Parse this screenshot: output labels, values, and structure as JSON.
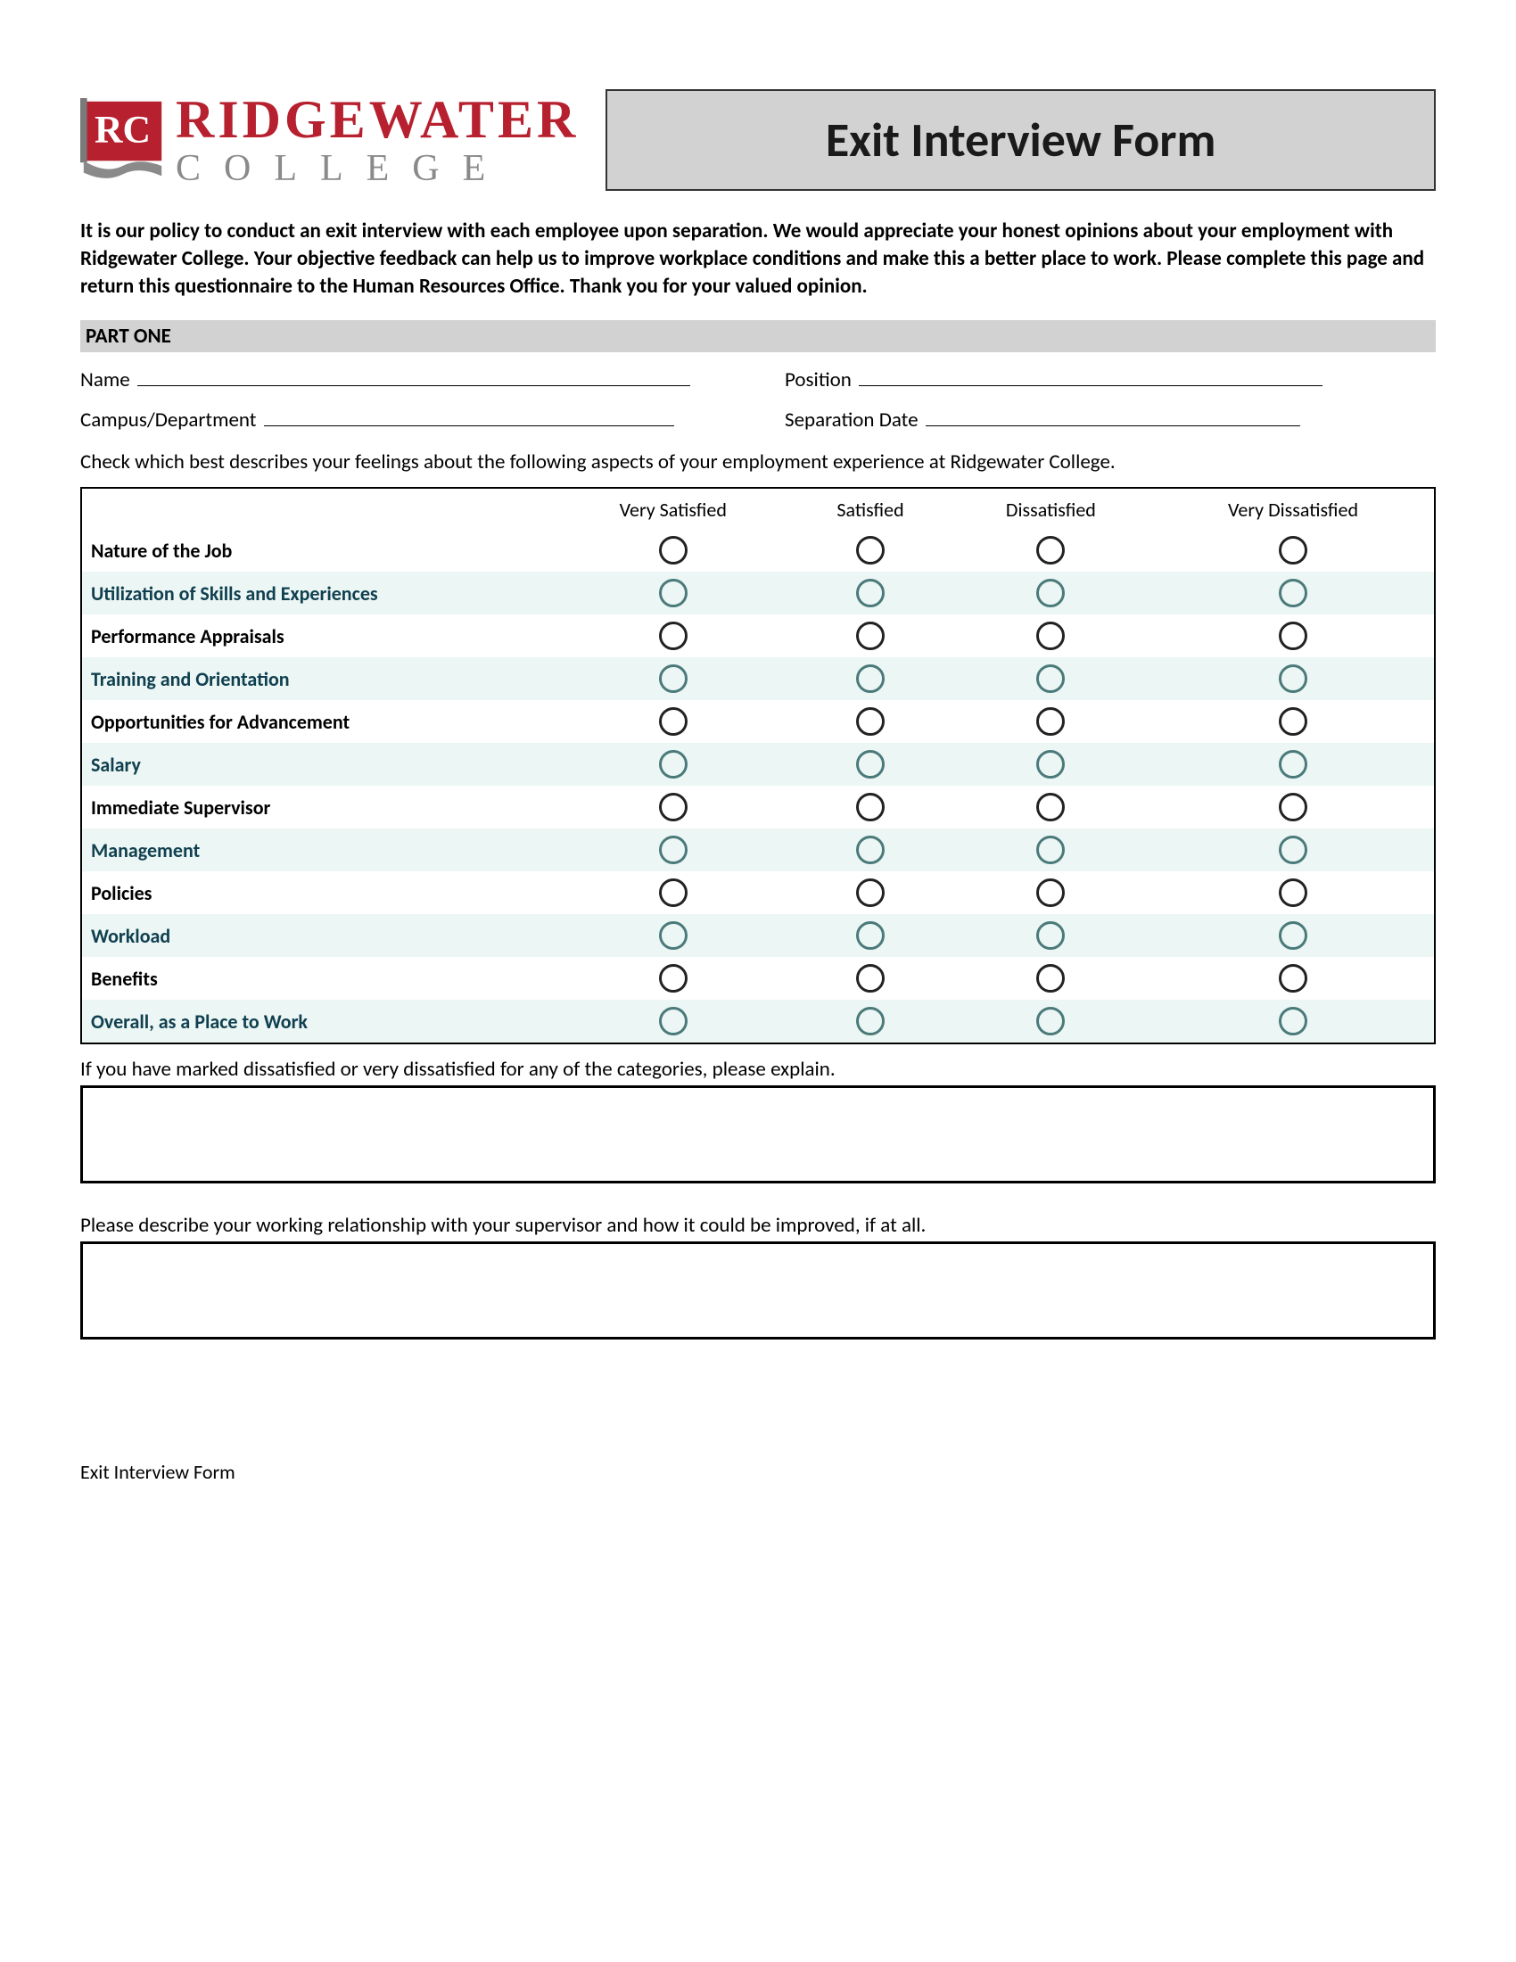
{
  "brand": {
    "name_top": "RIDGEWATER",
    "name_bottom": "COLLEGE",
    "badge_letters": "RC",
    "primary_color": "#B7202E",
    "secondary_color": "#8a8a8a"
  },
  "title": "Exit Interview Form",
  "intro": "It is our policy to conduct an exit interview with each employee upon separation. We would appreciate your honest opinions about your employment with Ridgewater College. Your objective feedback can help us to improve workplace conditions and make this a better place to work. Please complete this page and return this questionnaire to the Human Resources Office. Thank you for your valued opinion.",
  "part_one": {
    "heading": "PART ONE",
    "fields": {
      "name": "Name",
      "position": "Position",
      "campus_dept": "Campus/Department",
      "separation_date": "Separation Date"
    },
    "instructions": "Check which best describes your feelings about the following aspects of your employment experience at Ridgewater College.",
    "rating_columns": [
      "Very Satisfied",
      "Satisfied",
      "Dissatisfied",
      "Very Dissatisfied"
    ],
    "rating_rows": [
      "Nature of the Job",
      "Utilization of Skills and Experiences",
      "Performance Appraisals",
      "Training and Orientation",
      "Opportunities for Advancement",
      "Salary",
      "Immediate Supervisor",
      "Management",
      "Policies",
      "Workload",
      "Benefits",
      "Overall, as a Place to Work"
    ],
    "explain_prompt": "If you have marked dissatisfied or very dissatisfied for any of the categories, please explain.",
    "supervisor_prompt": "Please describe your working relationship with your supervisor and how it could be improved, if at all."
  },
  "footer": "Exit Interview Form",
  "style": {
    "page_bg": "#ffffff",
    "section_bg": "#d2d2d2",
    "alt_row_bg": "#ecf6f4",
    "alt_row_text": "#104050",
    "border_color": "#000000",
    "circle_border": "#222222",
    "circle_border_alt": "#4a7a7a",
    "title_bg": "#d2d2d2"
  }
}
